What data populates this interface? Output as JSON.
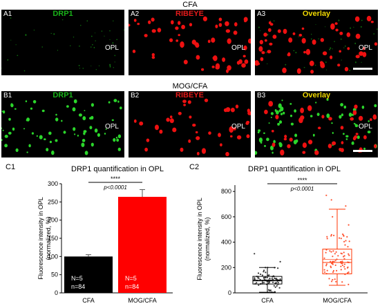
{
  "figure": {
    "row_a_title": "CFA",
    "row_b_title": "MOG/CFA",
    "panels": [
      {
        "id": "A1",
        "title": "DRP1",
        "title_color": "#19b219",
        "opl": "OPL",
        "scalebar": false
      },
      {
        "id": "A2",
        "title": "RIBEYE",
        "title_color": "#e31b1b",
        "opl": "OPL",
        "scalebar": false
      },
      {
        "id": "A3",
        "title": "Overlay",
        "title_color": "#f0d800",
        "opl": "OPL",
        "scalebar": true
      },
      {
        "id": "B1",
        "title": "DRP1",
        "title_color": "#19b219",
        "opl": "OPL",
        "scalebar": false
      },
      {
        "id": "B2",
        "title": "RIBEYE",
        "title_color": "#e31b1b",
        "opl": "OPL",
        "scalebar": false
      },
      {
        "id": "B3",
        "title": "Overlay",
        "title_color": "#f0d800",
        "opl": "OPL",
        "scalebar": true
      }
    ],
    "c1_label": "C1",
    "c2_label": "C2"
  },
  "chart_data": [
    {
      "type": "bar",
      "title": "DRP1 quantification in OPL",
      "ylabel": "Fluorescence intensity in OPL\n(normalized, %)",
      "xlabel": "",
      "categories": [
        "CFA",
        "MOG/CFA"
      ],
      "values": [
        100,
        264
      ],
      "errors": [
        5,
        20
      ],
      "colors": [
        "#000000",
        "#ff0000"
      ],
      "bar_annotations": [
        [
          "N=5",
          "n=84"
        ],
        [
          "N=5",
          "n=84"
        ]
      ],
      "ylim": [
        0,
        300
      ],
      "yticks": [
        0,
        50,
        100,
        150,
        200,
        250,
        300
      ],
      "significance": {
        "stars": "****",
        "p": "p<0.0001"
      }
    },
    {
      "type": "box",
      "title": "DRP1 quantification in OPL",
      "ylabel": "Fluorescence intensity in OPL\n(normalized, %)",
      "xlabel": "",
      "categories": [
        "CFA",
        "MOG/CFA"
      ],
      "colors": [
        "#000000",
        "#ff3300"
      ],
      "ylim": [
        0,
        850
      ],
      "yticks": [
        0,
        200,
        400,
        600,
        800
      ],
      "series": [
        {
          "name": "CFA",
          "whisker_low": 5,
          "q1": 70,
          "median": 95,
          "mean": 100,
          "q3": 130,
          "whisker_high": 200
        },
        {
          "name": "MOG/CFA",
          "whisker_low": 60,
          "q1": 150,
          "median": 240,
          "mean": 264,
          "q3": 345,
          "whisker_high": 660
        }
      ],
      "significance": {
        "stars": "****",
        "p": "p<0.0001"
      }
    }
  ]
}
